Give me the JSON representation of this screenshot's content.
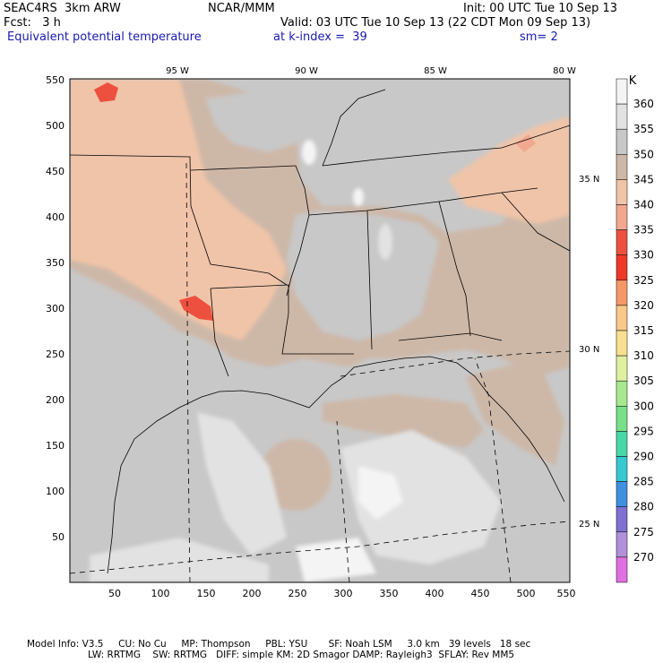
{
  "header": {
    "model": "SEAC4RS  3km ARW",
    "org": "NCAR/MMM",
    "init": "Init: 00 UTC Tue 10 Sep 13",
    "fcst": "Fcst:   3 h",
    "valid": "Valid: 03 UTC Tue 10 Sep 13 (22 CDT Mon 09 Sep 13)",
    "field": "Equivalent potential temperature",
    "level": "at k-index =  39",
    "smooth": "sm= 2"
  },
  "map": {
    "lon_labels": [
      "95 W",
      "90 W",
      "85 W",
      "80 W"
    ],
    "lat_labels": [
      "35 N",
      "30 N",
      "25 N"
    ],
    "x_ticks": [
      "50",
      "100",
      "150",
      "200",
      "250",
      "300",
      "350",
      "400",
      "450",
      "500",
      "550"
    ],
    "y_ticks": [
      "550",
      "500",
      "450",
      "400",
      "350",
      "300",
      "250",
      "200",
      "150",
      "100",
      "50"
    ]
  },
  "legend": {
    "unit": "K",
    "levels": [
      "360",
      "355",
      "350",
      "345",
      "340",
      "335",
      "330",
      "325",
      "320",
      "315",
      "310",
      "305",
      "300",
      "295",
      "290",
      "285",
      "280",
      "275",
      "270"
    ],
    "colors": [
      "#f4f4f4",
      "#e2e2e2",
      "#c8c8c8",
      "#cdb8a8",
      "#f0c4a8",
      "#f2a890",
      "#ee5040",
      "#f03828",
      "#f59868",
      "#fac888",
      "#f8e090",
      "#e0f0a0",
      "#a8e890",
      "#78e088",
      "#48d8a8",
      "#38c8d0",
      "#4090e0",
      "#8070d0",
      "#b090d8",
      "#e070e0"
    ]
  },
  "footer": {
    "line1": "Model Info: V3.5     CU: No Cu     MP: Thompson     PBL: YSU       SF: Noah LSM     3.0 km   39 levels   18 sec",
    "line2": "LW: RRTMG    SW: RRTMG   DIFF: simple KM: 2D Smagor DAMP: Rayleigh3  SFLAY: Rev MM5"
  }
}
